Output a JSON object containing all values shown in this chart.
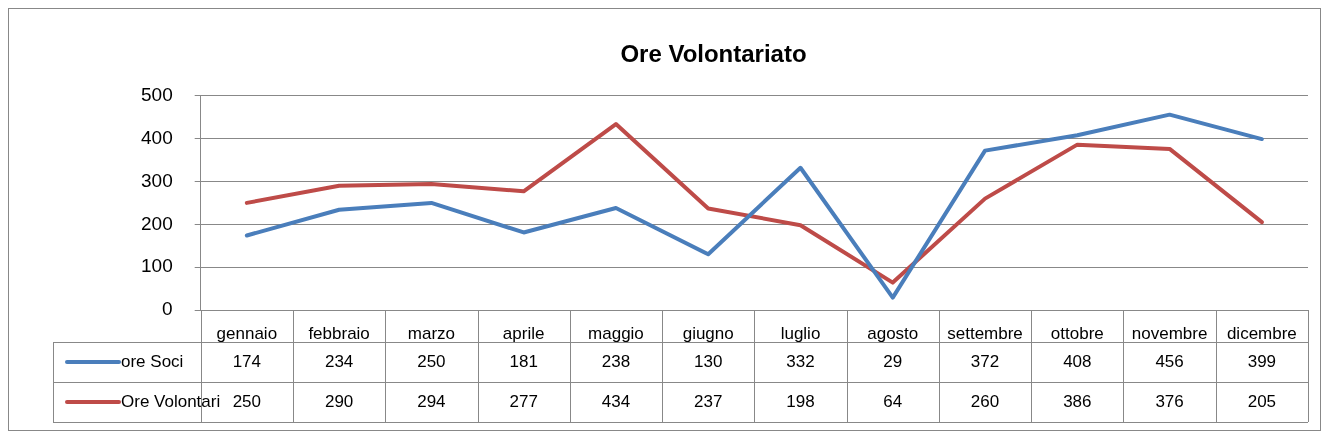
{
  "chart_data": {
    "type": "line",
    "title": "Ore Volontariato",
    "categories": [
      "gennaio",
      "febbraio",
      "marzo",
      "aprile",
      "maggio",
      "giugno",
      "luglio",
      "agosto",
      "settembre",
      "ottobre",
      "novembre",
      "dicembre"
    ],
    "series": [
      {
        "name": "ore Soci",
        "color": "#4a7ebb",
        "values": [
          174,
          234,
          250,
          181,
          238,
          130,
          332,
          29,
          372,
          408,
          456,
          399
        ]
      },
      {
        "name": "Ore Volontari",
        "color": "#be4b48",
        "values": [
          250,
          290,
          294,
          277,
          434,
          237,
          198,
          64,
          260,
          386,
          376,
          205
        ]
      }
    ],
    "ylim": [
      0,
      500
    ],
    "yticks": [
      0,
      100,
      200,
      300,
      400,
      500
    ],
    "grid": "y",
    "legend": "bottom",
    "data_labels": true,
    "marker": "none",
    "line_style": "solid"
  }
}
